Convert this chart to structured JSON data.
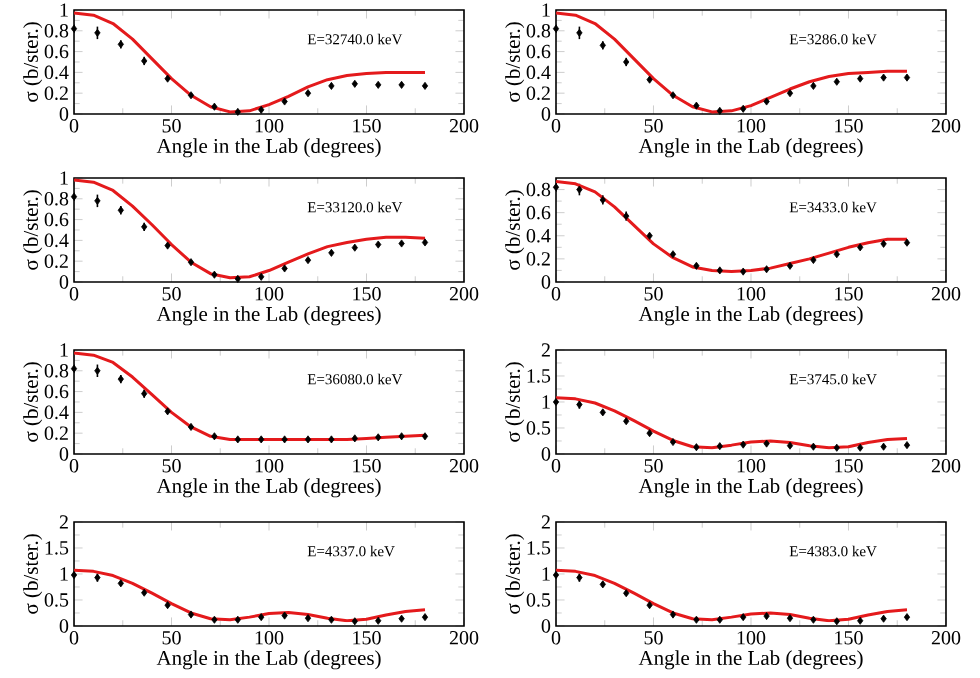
{
  "chart_data": [
    {
      "type": "scatter",
      "xlabel": "Angle in the Lab (degrees)",
      "ylabel": "σ (b/ster.)",
      "annotations": [
        "E=32740.0 keV"
      ],
      "xlim": [
        0,
        200
      ],
      "xticks": [
        0,
        50,
        100,
        150,
        200
      ],
      "ylim": [
        0,
        1
      ],
      "yticks": [
        0,
        0.2,
        0.4,
        0.6,
        0.8,
        1
      ],
      "series": [
        {
          "marker": "diamond",
          "color": "#000000",
          "x": [
            0,
            12,
            24,
            36,
            48,
            60,
            72,
            84,
            96,
            108,
            120,
            132,
            144,
            156,
            168,
            180
          ],
          "values": [
            0.82,
            0.78,
            0.67,
            0.51,
            0.34,
            0.18,
            0.07,
            0.02,
            0.04,
            0.12,
            0.2,
            0.27,
            0.29,
            0.28,
            0.28,
            0.27
          ],
          "errors": [
            0.04,
            0.06,
            0.04,
            0.04,
            0.02,
            null,
            null,
            null,
            null,
            null,
            null,
            null,
            null,
            null,
            null,
            null
          ]
        },
        {
          "type": "line",
          "color": "#e41a1c",
          "x": [
            0,
            10,
            20,
            30,
            40,
            50,
            60,
            70,
            80,
            90,
            100,
            110,
            120,
            130,
            140,
            150,
            160,
            170,
            180
          ],
          "values": [
            0.97,
            0.95,
            0.87,
            0.72,
            0.53,
            0.34,
            0.18,
            0.07,
            0.02,
            0.03,
            0.09,
            0.17,
            0.26,
            0.33,
            0.37,
            0.39,
            0.4,
            0.4,
            0.4
          ]
        }
      ]
    },
    {
      "type": "scatter",
      "xlabel": "Angle in the Lab (degrees)",
      "ylabel": "σ (b/ster.)",
      "annotations": [
        "E=3286.0 keV"
      ],
      "xlim": [
        0,
        200
      ],
      "xticks": [
        0,
        50,
        100,
        150,
        200
      ],
      "ylim": [
        0,
        1
      ],
      "yticks": [
        0,
        0.2,
        0.4,
        0.6,
        0.8,
        1
      ],
      "series": [
        {
          "marker": "diamond",
          "color": "#000000",
          "x": [
            0,
            12,
            24,
            36,
            48,
            60,
            72,
            84,
            96,
            108,
            120,
            132,
            144,
            156,
            168,
            180
          ],
          "values": [
            0.82,
            0.78,
            0.66,
            0.5,
            0.33,
            0.18,
            0.08,
            0.03,
            0.05,
            0.12,
            0.2,
            0.27,
            0.31,
            0.34,
            0.35,
            0.35
          ],
          "errors": [
            0.04,
            0.06,
            0.04,
            0.04,
            0.02,
            null,
            null,
            null,
            null,
            null,
            null,
            null,
            null,
            null,
            null,
            null
          ]
        },
        {
          "type": "line",
          "color": "#e41a1c",
          "x": [
            0,
            10,
            20,
            30,
            40,
            50,
            60,
            70,
            80,
            90,
            100,
            110,
            120,
            130,
            140,
            150,
            160,
            170,
            180
          ],
          "values": [
            0.97,
            0.95,
            0.87,
            0.72,
            0.53,
            0.34,
            0.18,
            0.07,
            0.02,
            0.03,
            0.08,
            0.16,
            0.24,
            0.31,
            0.36,
            0.39,
            0.4,
            0.41,
            0.41
          ]
        }
      ]
    },
    {
      "type": "scatter",
      "xlabel": "Angle in the Lab (degrees)",
      "ylabel": "σ (b/ster.)",
      "annotations": [
        "E=33120.0 keV"
      ],
      "xlim": [
        0,
        200
      ],
      "xticks": [
        0,
        50,
        100,
        150,
        200
      ],
      "ylim": [
        0,
        1
      ],
      "yticks": [
        0,
        0.2,
        0.4,
        0.6,
        0.8,
        1
      ],
      "series": [
        {
          "marker": "diamond",
          "color": "#000000",
          "x": [
            0,
            12,
            24,
            36,
            48,
            60,
            72,
            84,
            96,
            108,
            120,
            132,
            144,
            156,
            168,
            180
          ],
          "values": [
            0.82,
            0.78,
            0.69,
            0.53,
            0.35,
            0.19,
            0.07,
            0.03,
            0.05,
            0.13,
            0.21,
            0.28,
            0.33,
            0.36,
            0.37,
            0.38
          ],
          "errors": [
            0.04,
            0.06,
            0.04,
            0.04,
            0.02,
            null,
            null,
            null,
            null,
            null,
            null,
            null,
            null,
            null,
            null,
            null
          ]
        },
        {
          "type": "line",
          "color": "#e41a1c",
          "x": [
            0,
            10,
            20,
            30,
            40,
            50,
            60,
            70,
            80,
            90,
            100,
            110,
            120,
            130,
            140,
            150,
            160,
            170,
            180
          ],
          "values": [
            0.98,
            0.96,
            0.88,
            0.73,
            0.55,
            0.36,
            0.19,
            0.08,
            0.04,
            0.05,
            0.11,
            0.19,
            0.27,
            0.34,
            0.38,
            0.41,
            0.43,
            0.43,
            0.42
          ]
        }
      ]
    },
    {
      "type": "scatter",
      "xlabel": "Angle in the Lab (degrees)",
      "ylabel": "σ (b/ster.)",
      "annotations": [
        "E=3433.0 keV"
      ],
      "xlim": [
        0,
        200
      ],
      "xticks": [
        0,
        50,
        100,
        150,
        200
      ],
      "ylim": [
        0,
        0.9
      ],
      "yticks": [
        0,
        0.2,
        0.4,
        0.6,
        0.8
      ],
      "series": [
        {
          "marker": "diamond",
          "color": "#000000",
          "x": [
            0,
            12,
            24,
            36,
            48,
            60,
            72,
            84,
            96,
            108,
            120,
            132,
            144,
            156,
            168,
            180
          ],
          "values": [
            0.82,
            0.8,
            0.71,
            0.57,
            0.4,
            0.24,
            0.14,
            0.1,
            0.09,
            0.11,
            0.14,
            0.19,
            0.24,
            0.3,
            0.33,
            0.34
          ],
          "errors": [
            0.04,
            0.05,
            0.04,
            0.04,
            0.02,
            null,
            null,
            null,
            null,
            null,
            null,
            null,
            null,
            null,
            null,
            null
          ]
        },
        {
          "type": "line",
          "color": "#e41a1c",
          "x": [
            0,
            10,
            20,
            30,
            40,
            50,
            60,
            70,
            80,
            90,
            100,
            110,
            120,
            130,
            140,
            150,
            160,
            170,
            180
          ],
          "values": [
            0.87,
            0.85,
            0.78,
            0.65,
            0.49,
            0.33,
            0.21,
            0.13,
            0.1,
            0.09,
            0.1,
            0.12,
            0.16,
            0.2,
            0.25,
            0.3,
            0.34,
            0.37,
            0.37
          ]
        }
      ]
    },
    {
      "type": "scatter",
      "xlabel": "Angle in the Lab (degrees)",
      "ylabel": "σ (b/ster.)",
      "annotations": [
        "E=36080.0 keV"
      ],
      "xlim": [
        0,
        200
      ],
      "xticks": [
        0,
        50,
        100,
        150,
        200
      ],
      "ylim": [
        0,
        1
      ],
      "yticks": [
        0,
        0.2,
        0.4,
        0.6,
        0.8,
        1
      ],
      "series": [
        {
          "marker": "diamond",
          "color": "#000000",
          "x": [
            0,
            12,
            24,
            36,
            48,
            60,
            72,
            84,
            96,
            108,
            120,
            132,
            144,
            156,
            168,
            180
          ],
          "values": [
            0.82,
            0.8,
            0.72,
            0.58,
            0.41,
            0.26,
            0.17,
            0.14,
            0.14,
            0.14,
            0.14,
            0.14,
            0.15,
            0.16,
            0.17,
            0.17
          ],
          "errors": [
            0.04,
            0.06,
            0.04,
            0.04,
            0.02,
            null,
            null,
            null,
            null,
            null,
            null,
            null,
            null,
            null,
            null,
            null
          ]
        },
        {
          "type": "line",
          "color": "#e41a1c",
          "x": [
            0,
            10,
            20,
            30,
            40,
            50,
            60,
            70,
            80,
            90,
            100,
            110,
            120,
            130,
            140,
            150,
            160,
            170,
            180
          ],
          "values": [
            0.97,
            0.95,
            0.88,
            0.74,
            0.57,
            0.4,
            0.26,
            0.17,
            0.14,
            0.14,
            0.14,
            0.14,
            0.14,
            0.14,
            0.14,
            0.15,
            0.16,
            0.17,
            0.18
          ]
        }
      ]
    },
    {
      "type": "scatter",
      "xlabel": "Angle in the Lab (degrees)",
      "ylabel": "σ (b/ster.)",
      "annotations": [
        "E=3745.0 keV"
      ],
      "xlim": [
        0,
        200
      ],
      "xticks": [
        0,
        50,
        100,
        150,
        200
      ],
      "ylim": [
        0,
        2
      ],
      "yticks": [
        0,
        0.5,
        1,
        1.5,
        2
      ],
      "series": [
        {
          "marker": "diamond",
          "color": "#000000",
          "x": [
            0,
            12,
            24,
            36,
            48,
            60,
            72,
            84,
            96,
            108,
            120,
            132,
            144,
            156,
            168,
            180
          ],
          "values": [
            1.0,
            0.95,
            0.8,
            0.63,
            0.4,
            0.23,
            0.13,
            0.15,
            0.18,
            0.2,
            0.16,
            0.14,
            0.12,
            0.12,
            0.14,
            0.17
          ],
          "errors": [
            0.06,
            0.08,
            0.05,
            0.04,
            0.03,
            null,
            null,
            null,
            null,
            null,
            null,
            null,
            null,
            null,
            null,
            null
          ]
        },
        {
          "type": "line",
          "color": "#e41a1c",
          "x": [
            0,
            10,
            20,
            30,
            40,
            50,
            60,
            70,
            80,
            90,
            100,
            110,
            120,
            130,
            140,
            150,
            160,
            170,
            180
          ],
          "values": [
            1.08,
            1.06,
            0.98,
            0.83,
            0.64,
            0.44,
            0.26,
            0.14,
            0.12,
            0.17,
            0.23,
            0.25,
            0.22,
            0.16,
            0.12,
            0.14,
            0.22,
            0.28,
            0.3
          ]
        }
      ]
    },
    {
      "type": "scatter",
      "xlabel": "Angle in the Lab (degrees)",
      "ylabel": "σ (b/ster.)",
      "annotations": [
        "E=4337.0 keV"
      ],
      "xlim": [
        0,
        200
      ],
      "xticks": [
        0,
        50,
        100,
        150,
        200
      ],
      "ylim": [
        0,
        2
      ],
      "yticks": [
        0,
        0.5,
        1,
        1.5,
        2
      ],
      "series": [
        {
          "marker": "diamond",
          "color": "#000000",
          "x": [
            0,
            12,
            24,
            36,
            48,
            60,
            72,
            84,
            96,
            108,
            120,
            132,
            144,
            156,
            168,
            180
          ],
          "values": [
            0.98,
            0.93,
            0.82,
            0.64,
            0.4,
            0.22,
            0.12,
            0.12,
            0.17,
            0.2,
            0.15,
            0.12,
            0.09,
            0.1,
            0.14,
            0.17
          ],
          "errors": [
            0.06,
            0.08,
            0.05,
            0.04,
            0.03,
            null,
            null,
            null,
            null,
            null,
            null,
            null,
            null,
            null,
            null,
            null
          ]
        },
        {
          "type": "line",
          "color": "#e41a1c",
          "x": [
            0,
            10,
            20,
            30,
            40,
            50,
            60,
            70,
            80,
            90,
            100,
            110,
            120,
            130,
            140,
            150,
            160,
            170,
            180
          ],
          "values": [
            1.07,
            1.05,
            0.97,
            0.82,
            0.63,
            0.43,
            0.25,
            0.14,
            0.12,
            0.17,
            0.24,
            0.26,
            0.22,
            0.15,
            0.1,
            0.13,
            0.21,
            0.28,
            0.31
          ]
        }
      ]
    },
    {
      "type": "scatter",
      "xlabel": "Angle in the Lab (degrees)",
      "ylabel": "σ (b/ster.)",
      "annotations": [
        "E=4383.0 keV"
      ],
      "xlim": [
        0,
        200
      ],
      "xticks": [
        0,
        50,
        100,
        150,
        200
      ],
      "ylim": [
        0,
        2
      ],
      "yticks": [
        0,
        0.5,
        1,
        1.5,
        2
      ],
      "series": [
        {
          "marker": "diamond",
          "color": "#000000",
          "x": [
            0,
            12,
            24,
            36,
            48,
            60,
            72,
            84,
            96,
            108,
            120,
            132,
            144,
            156,
            168,
            180
          ],
          "values": [
            0.98,
            0.93,
            0.8,
            0.63,
            0.4,
            0.22,
            0.12,
            0.12,
            0.17,
            0.19,
            0.15,
            0.12,
            0.09,
            0.1,
            0.14,
            0.17
          ],
          "errors": [
            0.06,
            0.08,
            0.05,
            0.04,
            0.03,
            null,
            null,
            null,
            null,
            null,
            null,
            null,
            null,
            null,
            null,
            null
          ]
        },
        {
          "type": "line",
          "color": "#e41a1c",
          "x": [
            0,
            10,
            20,
            30,
            40,
            50,
            60,
            70,
            80,
            90,
            100,
            110,
            120,
            130,
            140,
            150,
            160,
            170,
            180
          ],
          "values": [
            1.07,
            1.05,
            0.97,
            0.82,
            0.63,
            0.43,
            0.25,
            0.14,
            0.12,
            0.17,
            0.23,
            0.25,
            0.22,
            0.15,
            0.1,
            0.13,
            0.21,
            0.28,
            0.31
          ]
        }
      ]
    }
  ]
}
